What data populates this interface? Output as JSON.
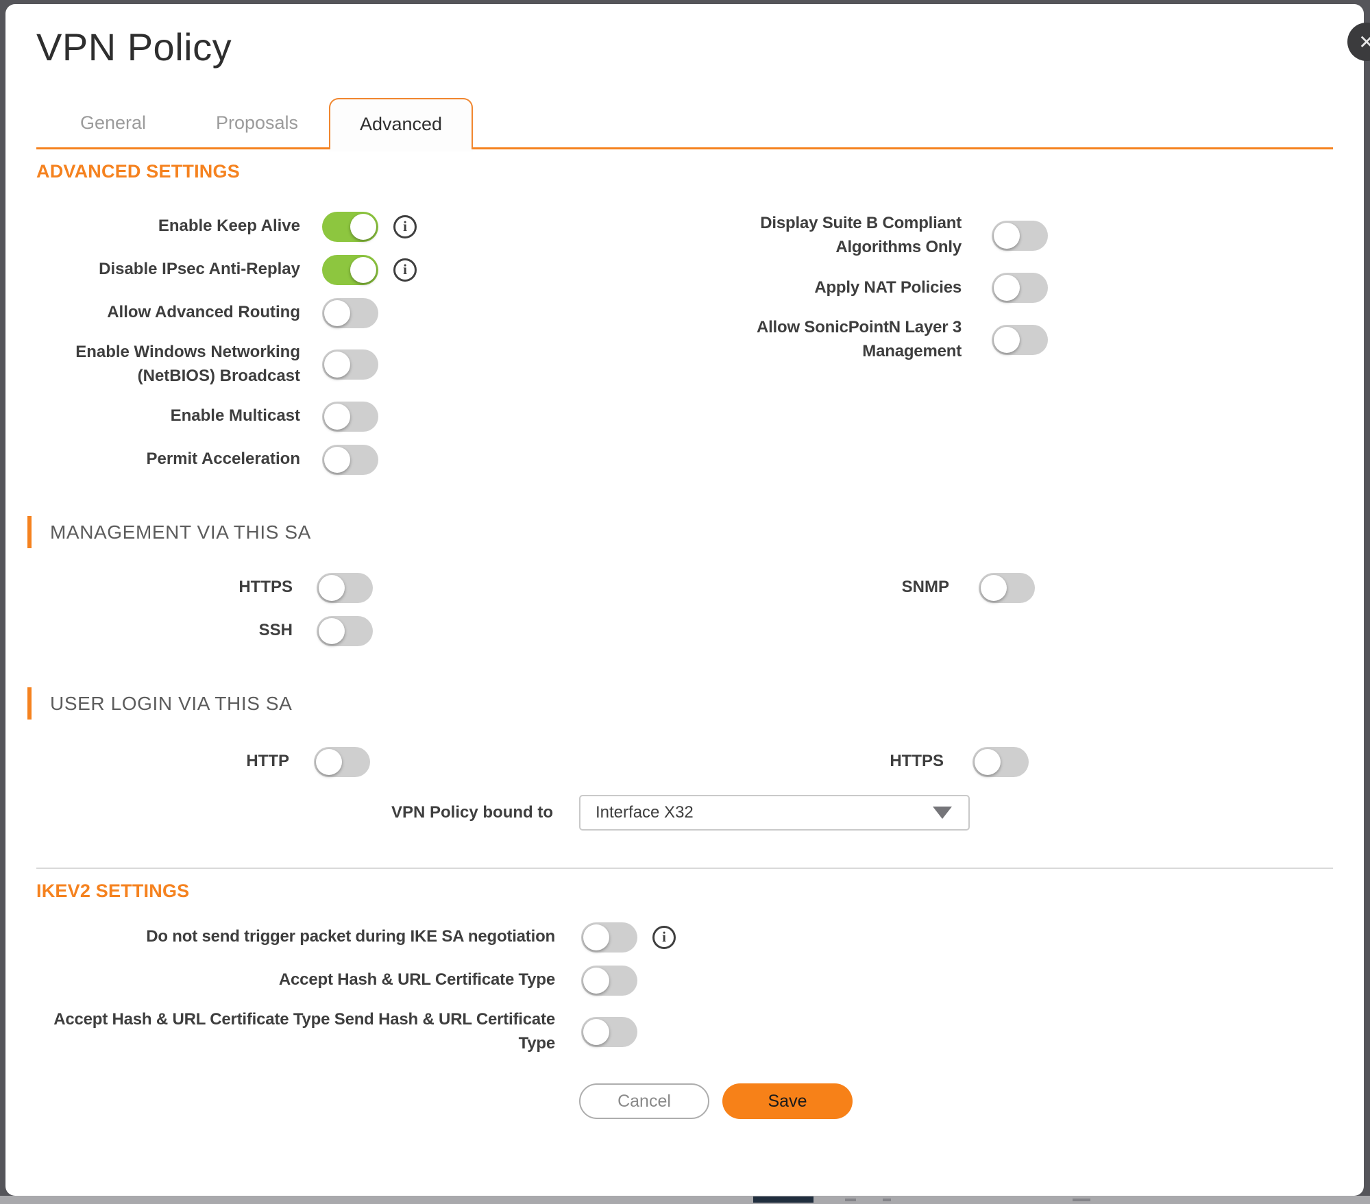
{
  "dialog": {
    "title": "VPN Policy"
  },
  "icons": {
    "info": "i",
    "close": "✕"
  },
  "tabs": [
    {
      "label": "General",
      "state": ""
    },
    {
      "label": "Proposals",
      "state": ""
    },
    {
      "label": "Advanced",
      "state": "active"
    }
  ],
  "advanced_settings": {
    "title": "ADVANCED SETTINGS",
    "left_rows": [
      {
        "label": "Enable Keep Alive",
        "state": "on"
      },
      {
        "label": "Disable IPsec Anti-Replay",
        "state": "on"
      },
      {
        "label": "Allow Advanced Routing",
        "state": "off"
      },
      {
        "label": "Enable Windows Networking (NetBIOS) Broadcast",
        "state": "off"
      },
      {
        "label": "Enable Multicast",
        "state": "off"
      },
      {
        "label": "Permit Acceleration",
        "state": "off"
      }
    ],
    "right_rows": [
      {
        "label": "Display Suite B Compliant Algorithms Only",
        "state": "off"
      },
      {
        "label": "Apply NAT Policies",
        "state": "off"
      },
      {
        "label": "Allow SonicPointN Layer 3 Management",
        "state": "off"
      }
    ]
  },
  "management_sa": {
    "title": "MANAGEMENT VIA THIS SA",
    "left_rows": [
      {
        "label": "HTTPS",
        "state": "off"
      },
      {
        "label": "SSH",
        "state": "off"
      }
    ],
    "right_rows": [
      {
        "label": "SNMP",
        "state": "off"
      }
    ]
  },
  "user_login_sa": {
    "title": "USER LOGIN VIA THIS SA",
    "left_rows": [
      {
        "label": "HTTP",
        "state": "off"
      }
    ],
    "right_rows": [
      {
        "label": "HTTPS",
        "state": "off"
      }
    ],
    "bound_to": {
      "label": "VPN Policy bound to",
      "value": "Interface X32"
    }
  },
  "ikev2": {
    "title": "IKEV2 SETTINGS",
    "rows": [
      {
        "label": "Do not send trigger packet during IKE SA negotiation",
        "state": "off"
      },
      {
        "label": "Accept Hash & URL Certificate Type",
        "state": "off"
      },
      {
        "label": "Accept Hash & URL Certificate Type Send Hash & URL Certificate Type",
        "state": "off"
      }
    ]
  },
  "actions": {
    "cancel": "Cancel",
    "save": "Save"
  },
  "colors": {
    "accent_orange": "#F5821F",
    "toggle_on_green": "#8DC63F",
    "toggle_off_gray": "#CFCFCF",
    "save_button_orange": "#F78118"
  }
}
